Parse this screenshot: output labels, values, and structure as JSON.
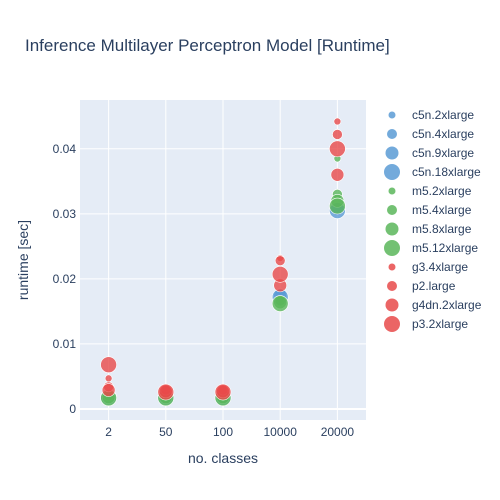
{
  "chart_data": {
    "type": "scatter",
    "title": "Inference Multilayer Perceptron Model [Runtime]",
    "xlabel": "no. classes",
    "ylabel": "runtime [sec]",
    "categories": [
      "2",
      "50",
      "100",
      "10000",
      "20000"
    ],
    "ylim": [
      -0.0017,
      0.0475
    ],
    "yticks": [
      0,
      0.01,
      0.02,
      0.03,
      0.04
    ],
    "ytick_labels": [
      "0",
      "0.01",
      "0.02",
      "0.03",
      "0.04"
    ],
    "grid": true,
    "legend_position": "right",
    "series": [
      {
        "name": "c5n.2xlarge",
        "color": "#5b9bd5",
        "size": "small",
        "values": [
          0.0021,
          0.0021,
          0.0021,
          0.018,
          0.0312
        ]
      },
      {
        "name": "c5n.4xlarge",
        "color": "#5b9bd5",
        "size": "medium",
        "values": [
          0.002,
          0.002,
          0.002,
          0.0178,
          0.031
        ]
      },
      {
        "name": "c5n.9xlarge",
        "color": "#5b9bd5",
        "size": "large",
        "values": [
          0.0019,
          0.0019,
          0.0019,
          0.0175,
          0.0308
        ]
      },
      {
        "name": "c5n.18xlarge",
        "color": "#5b9bd5",
        "size": "xlarge",
        "values": [
          0.0018,
          0.0018,
          0.0018,
          0.0172,
          0.0305
        ]
      },
      {
        "name": "m5.2xlarge",
        "color": "#5ab65a",
        "size": "small",
        "values": [
          0.0022,
          0.0022,
          0.0022,
          0.0168,
          0.0385
        ]
      },
      {
        "name": "m5.4xlarge",
        "color": "#5ab65a",
        "size": "medium",
        "values": [
          0.002,
          0.002,
          0.002,
          0.0166,
          0.033
        ]
      },
      {
        "name": "m5.8xlarge",
        "color": "#5ab65a",
        "size": "large",
        "values": [
          0.0018,
          0.0018,
          0.0018,
          0.0164,
          0.032
        ]
      },
      {
        "name": "m5.12xlarge",
        "color": "#5ab65a",
        "size": "xlarge",
        "values": [
          0.0017,
          0.0017,
          0.0017,
          0.0162,
          0.0312
        ]
      },
      {
        "name": "g3.4xlarge",
        "color": "#e84a4a",
        "size": "small",
        "values": [
          0.0047,
          0.0032,
          0.003,
          0.0232,
          0.0442
        ]
      },
      {
        "name": "p2.large",
        "color": "#e84a4a",
        "size": "medium",
        "values": [
          0.0034,
          0.0029,
          0.0029,
          0.0228,
          0.0422
        ]
      },
      {
        "name": "g4dn.2xlarge",
        "color": "#e84a4a",
        "size": "large",
        "values": [
          0.0029,
          0.0027,
          0.0027,
          0.019,
          0.036
        ]
      },
      {
        "name": "p3.2xlarge",
        "color": "#e84a4a",
        "size": "xlarge",
        "values": [
          0.0068,
          0.0026,
          0.0026,
          0.0207,
          0.04
        ]
      }
    ]
  }
}
